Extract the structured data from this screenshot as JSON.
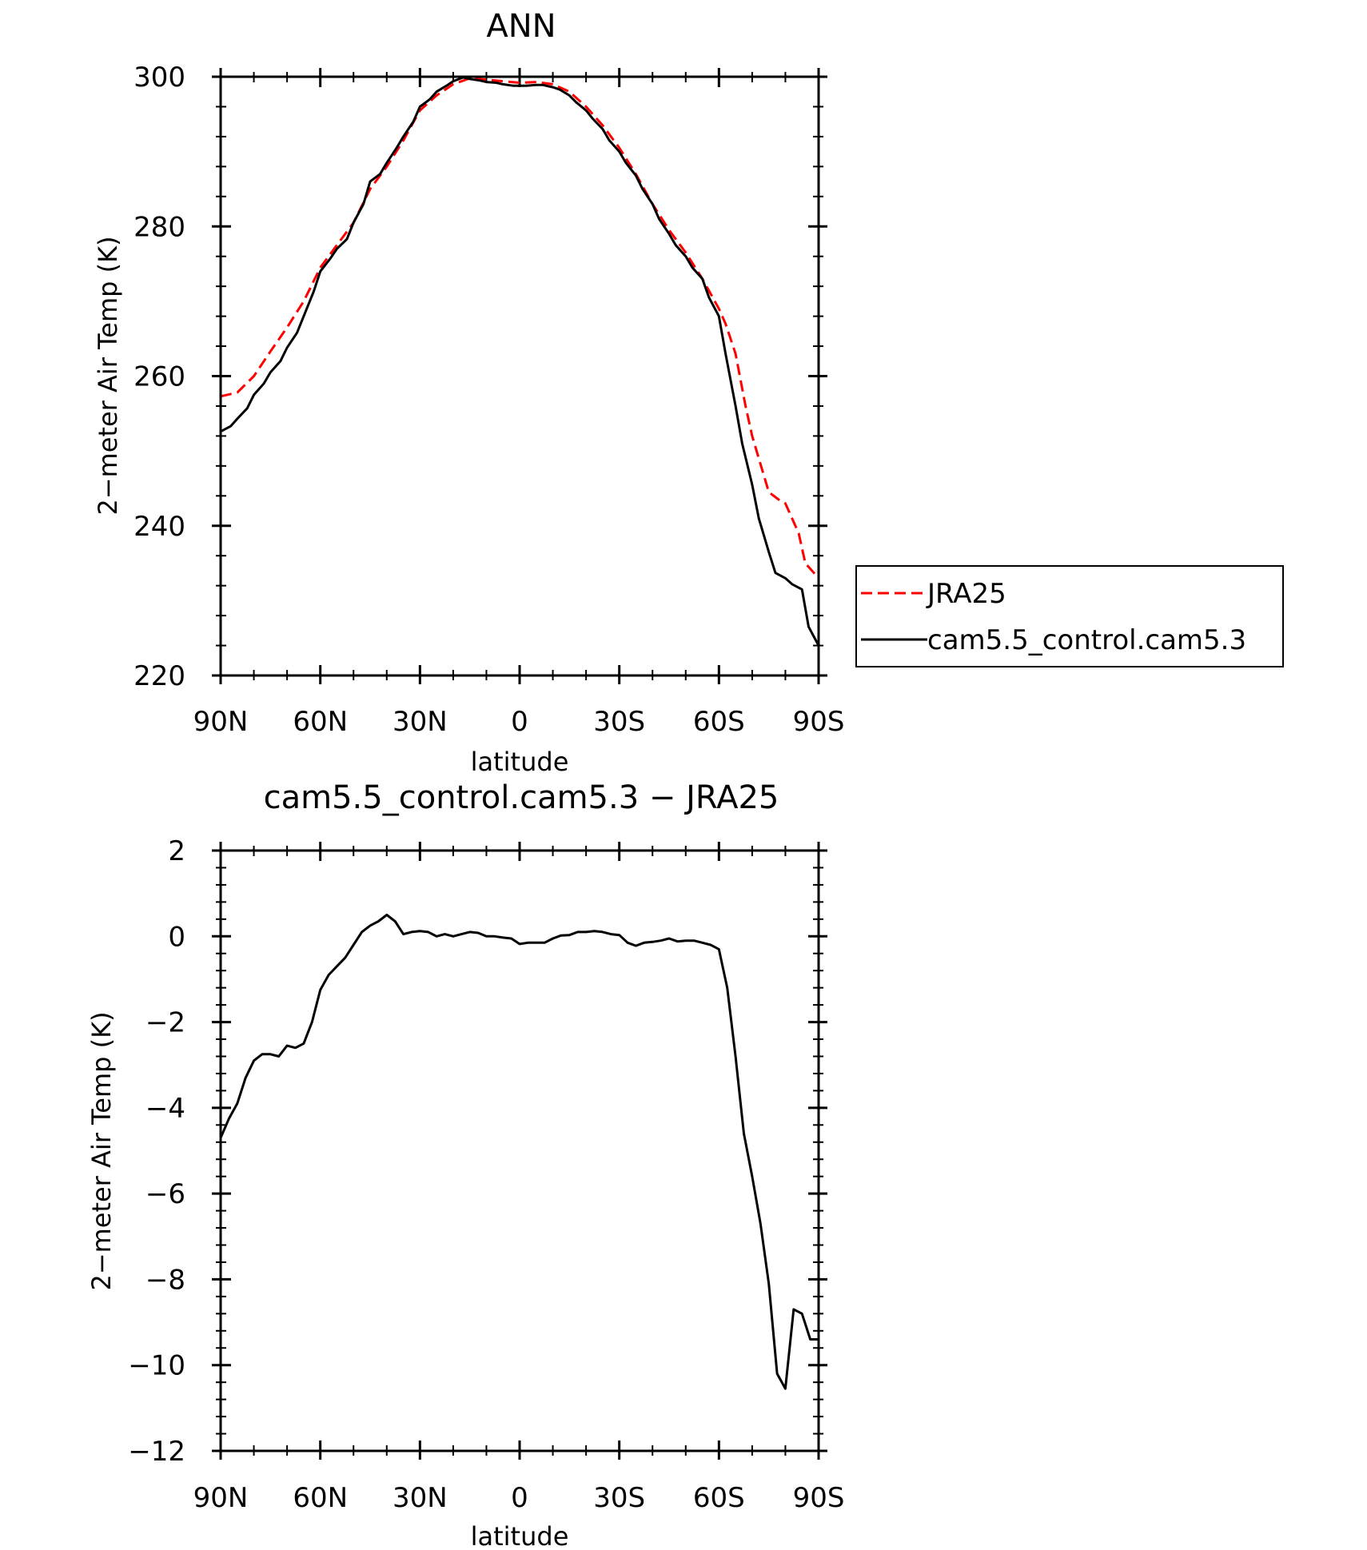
{
  "chart_data": [
    {
      "type": "line",
      "title": "ANN",
      "xlabel": "latitude",
      "ylabel": "2−meter Air Temp (K)",
      "xlim": [
        90,
        -90
      ],
      "ylim": [
        220,
        300
      ],
      "xticks": [
        {
          "value": 90,
          "label": "90N"
        },
        {
          "value": 60,
          "label": "60N"
        },
        {
          "value": 30,
          "label": "30N"
        },
        {
          "value": 0,
          "label": "0"
        },
        {
          "value": -30,
          "label": "30S"
        },
        {
          "value": -60,
          "label": "60S"
        },
        {
          "value": -90,
          "label": "90S"
        }
      ],
      "yticks": [
        {
          "value": 300,
          "label": "300"
        },
        {
          "value": 280,
          "label": "280"
        },
        {
          "value": 260,
          "label": "260"
        },
        {
          "value": 240,
          "label": "240"
        },
        {
          "value": 220,
          "label": "220"
        }
      ],
      "legend_position": "right",
      "legend_frame": true,
      "series": [
        {
          "name": "JRA25",
          "color": "#ff0000",
          "dash": "dashed",
          "x": [
            90,
            85,
            80,
            75,
            70,
            65,
            60,
            55,
            50,
            45,
            40,
            35,
            30,
            25,
            20,
            15,
            10,
            5,
            0,
            -5,
            -10,
            -15,
            -20,
            -25,
            -30,
            -35,
            -40,
            -45,
            -50,
            -55,
            -60,
            -62,
            -65,
            -68,
            -70,
            -72,
            -75,
            -78,
            -80,
            -82,
            -84,
            -86,
            -88,
            -90
          ],
          "y": [
            257.3,
            257.8,
            260,
            263.3,
            266.5,
            270,
            274.5,
            277.5,
            280.5,
            285,
            288,
            291.5,
            295.5,
            297.5,
            299,
            299.8,
            299.6,
            299.4,
            299.2,
            299.3,
            299,
            298,
            296,
            293.5,
            290.5,
            287,
            283,
            279.5,
            276.5,
            273,
            269,
            267,
            263,
            256,
            252,
            249,
            244.5,
            243.5,
            243,
            241,
            239,
            235,
            234,
            233
          ]
        },
        {
          "name": "cam5.5_control.cam5.3",
          "color": "#000000",
          "dash": "solid",
          "x": [
            90,
            87,
            85,
            82,
            80,
            77,
            75,
            72,
            70,
            67,
            65,
            62,
            60,
            57,
            55,
            52,
            50,
            47,
            45,
            42,
            40,
            37,
            35,
            32,
            30,
            27,
            25,
            22,
            20,
            17,
            15,
            12,
            10,
            7,
            5,
            2,
            0,
            -2,
            -5,
            -7,
            -10,
            -12,
            -15,
            -17,
            -20,
            -22,
            -25,
            -27,
            -30,
            -32,
            -35,
            -37,
            -40,
            -42,
            -45,
            -47,
            -50,
            -52,
            -55,
            -57,
            -60,
            -62,
            -65,
            -67,
            -70,
            -72,
            -75,
            -77,
            -80,
            -82,
            -85,
            -87,
            -90
          ],
          "y": [
            252.6,
            253.3,
            254.3,
            255.7,
            257.5,
            259,
            260.5,
            262,
            263.8,
            265.8,
            268,
            271.3,
            274,
            275.7,
            277,
            278.3,
            280.5,
            283,
            286,
            287,
            288.5,
            290.5,
            292,
            294,
            296,
            297,
            298,
            298.8,
            299.4,
            299.9,
            299.7,
            299.5,
            299.3,
            299.2,
            299,
            298.8,
            298.8,
            298.8,
            298.9,
            298.9,
            298.6,
            298.3,
            297.5,
            296.6,
            295.5,
            294.4,
            293,
            291.5,
            290,
            288.5,
            286.8,
            285,
            283,
            281,
            279,
            277.5,
            276,
            274.5,
            273,
            270.5,
            268,
            263,
            256,
            251,
            245.5,
            241,
            236.5,
            233.7,
            233,
            232.2,
            231.5,
            226.5,
            224
          ]
        }
      ]
    },
    {
      "type": "line",
      "title": "cam5.5_control.cam5.3 − JRA25",
      "xlabel": "latitude",
      "ylabel": "2−meter Air Temp (K)",
      "xlim": [
        90,
        -90
      ],
      "ylim": [
        -12,
        2
      ],
      "xticks": [
        {
          "value": 90,
          "label": "90N"
        },
        {
          "value": 60,
          "label": "60N"
        },
        {
          "value": 30,
          "label": "30N"
        },
        {
          "value": 0,
          "label": "0"
        },
        {
          "value": -30,
          "label": "30S"
        },
        {
          "value": -60,
          "label": "60S"
        },
        {
          "value": -90,
          "label": "90S"
        }
      ],
      "yticks": [
        {
          "value": 2,
          "label": "2"
        },
        {
          "value": 0,
          "label": "0"
        },
        {
          "value": -2,
          "label": "−2"
        },
        {
          "value": -4,
          "label": "−4"
        },
        {
          "value": -6,
          "label": "−6"
        },
        {
          "value": -8,
          "label": "−8"
        },
        {
          "value": -10,
          "label": "−10"
        },
        {
          "value": -12,
          "label": "−12"
        }
      ],
      "series": [
        {
          "color": "#000000",
          "dash": "solid",
          "x": [
            90,
            87.5,
            85,
            82.5,
            80,
            77.5,
            75,
            72.5,
            70,
            67.5,
            65,
            62.5,
            60,
            57.5,
            55,
            52.5,
            50,
            47.5,
            45,
            42.5,
            40,
            37.5,
            35,
            32.5,
            30,
            27.5,
            25,
            22.5,
            20,
            17.5,
            15,
            12.5,
            10,
            7.5,
            5,
            2.5,
            0,
            -2.5,
            -5,
            -7.5,
            -10,
            -12.5,
            -15,
            -17.5,
            -20,
            -22.5,
            -25,
            -27.5,
            -30,
            -32.5,
            -35,
            -37.5,
            -40,
            -42.5,
            -45,
            -47.5,
            -50,
            -52.5,
            -55,
            -57.5,
            -60,
            -62.5,
            -65,
            -67.5,
            -70,
            -72.5,
            -75,
            -77.5,
            -80,
            -82.5,
            -85,
            -87.5,
            -90
          ],
          "y": [
            -4.7,
            -4.25,
            -3.9,
            -3.3,
            -2.9,
            -2.75,
            -2.75,
            -2.8,
            -2.55,
            -2.6,
            -2.5,
            -2.0,
            -1.25,
            -0.9,
            -0.7,
            -0.5,
            -0.2,
            0.1,
            0.25,
            0.35,
            0.5,
            0.35,
            0.05,
            0.1,
            0.12,
            0.1,
            0.0,
            0.05,
            0.0,
            0.05,
            0.1,
            0.08,
            0.0,
            0.0,
            -0.03,
            -0.05,
            -0.18,
            -0.15,
            -0.15,
            -0.15,
            -0.05,
            0.02,
            0.03,
            0.1,
            0.1,
            0.12,
            0.1,
            0.05,
            0.03,
            -0.15,
            -0.22,
            -0.15,
            -0.13,
            -0.1,
            -0.05,
            -0.12,
            -0.1,
            -0.1,
            -0.15,
            -0.2,
            -0.3,
            -1.2,
            -2.8,
            -4.6,
            -5.6,
            -6.7,
            -8.1,
            -10.2,
            -10.55,
            -8.7,
            -8.8,
            -9.4,
            -9.4
          ]
        }
      ]
    }
  ]
}
